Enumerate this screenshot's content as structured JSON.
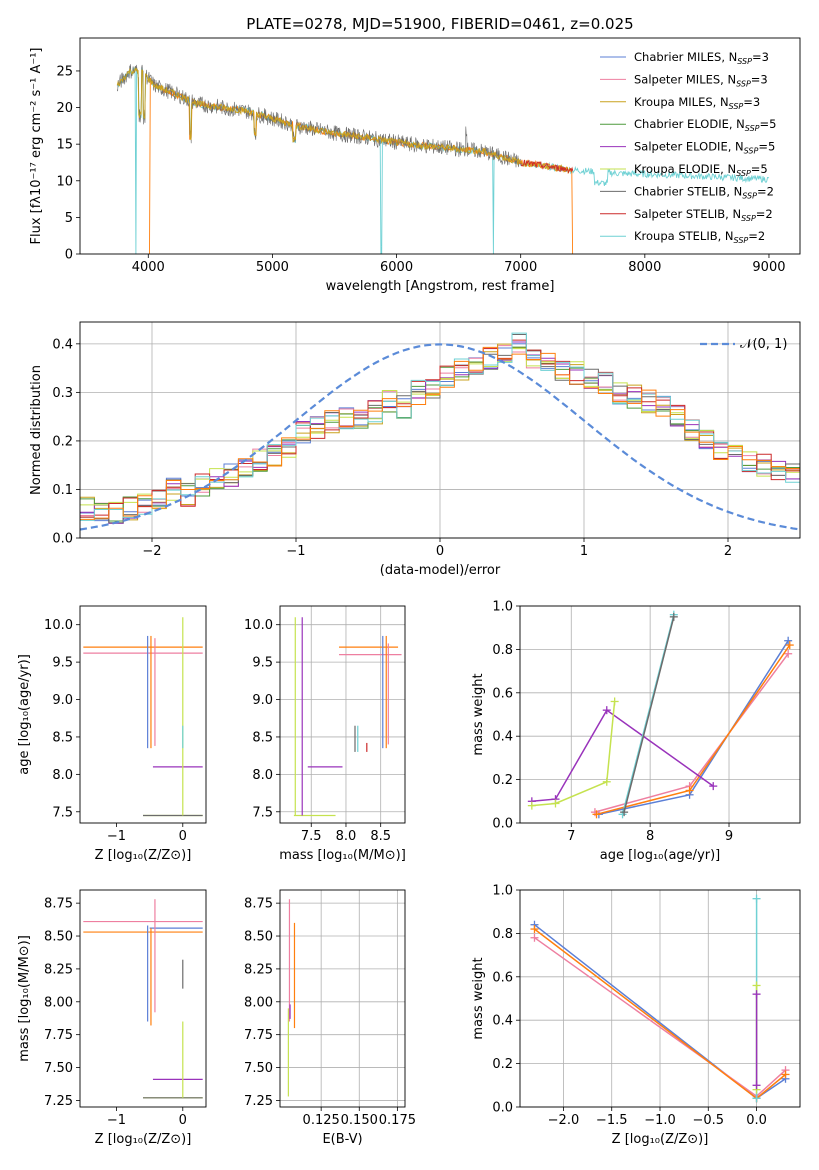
{
  "figure": {
    "title": "PLATE=0278, MJD=51900, FIBERID=0461, z=0.025"
  },
  "colors": {
    "chabrier_miles": "#5b7fd6",
    "salpeter_miles": "#ee7fa0",
    "kroupa_miles": "#c9a21f",
    "chabrier_elodie": "#4f9a3d",
    "salpeter_elodie": "#9933bb",
    "kroupa_elodie": "#c5e24f",
    "chabrier_stelib": "#6b6b6b",
    "salpeter_stelib": "#cc2a2a",
    "kroupa_stelib": "#6fd1d4",
    "orange": "#ff7f0e",
    "normal_curve": "#5b8bd8",
    "grid": "#b0b0b0"
  },
  "chart_data": [
    {
      "id": "spectrum",
      "type": "line",
      "xlabel": "wavelength [Angstrom, rest frame]",
      "ylabel": "Flux [f_λ10^-17 erg cm^-2 s^-1 A^-1]",
      "xlim": [
        3450,
        9250
      ],
      "ylim": [
        0,
        29.5
      ],
      "xticks": [
        4000,
        5000,
        6000,
        7000,
        8000,
        9000
      ],
      "yticks": [
        0,
        5,
        10,
        15,
        20,
        25
      ],
      "grid": false,
      "legend_position": "top-right",
      "legend": [
        {
          "label": "Chabrier MILES, N",
          "sub": "SSP",
          "tail": "=3",
          "color_key": "chabrier_miles"
        },
        {
          "label": "Salpeter MILES, N",
          "sub": "SSP",
          "tail": "=3",
          "color_key": "salpeter_miles"
        },
        {
          "label": "Kroupa MILES, N",
          "sub": "SSP",
          "tail": "=3",
          "color_key": "kroupa_miles"
        },
        {
          "label": "Chabrier ELODIE, N",
          "sub": "SSP",
          "tail": "=5",
          "color_key": "chabrier_elodie"
        },
        {
          "label": "Salpeter ELODIE, N",
          "sub": "SSP",
          "tail": "=5",
          "color_key": "salpeter_elodie"
        },
        {
          "label": "Kroupa ELODIE, N",
          "sub": "SSP",
          "tail": "=5",
          "color_key": "kroupa_elodie"
        },
        {
          "label": "Chabrier STELIB, N",
          "sub": "SSP",
          "tail": "=2",
          "color_key": "chabrier_stelib"
        },
        {
          "label": "Salpeter STELIB, N",
          "sub": "SSP",
          "tail": "=2",
          "color_key": "salpeter_stelib"
        },
        {
          "label": "Kroupa STELIB, N",
          "sub": "SSP",
          "tail": "=2",
          "color_key": "kroupa_stelib"
        }
      ],
      "continuum": {
        "x": [
          3750,
          3850,
          3950,
          4050,
          4200,
          4400,
          4600,
          4800,
          5000,
          5200,
          5500,
          5800,
          6100,
          6400,
          6700,
          7000,
          7400,
          7800,
          8200,
          8600,
          9000
        ],
        "y": [
          23,
          25,
          25,
          23,
          22,
          20.5,
          20,
          19.5,
          18.5,
          17.5,
          16.5,
          15.8,
          15,
          14.5,
          14,
          12.5,
          11.5,
          11,
          10.8,
          10.5,
          10.2
        ]
      },
      "spectra": [
        {
          "color_key": "kroupa_stelib",
          "x_range": [
            3750,
            9000
          ],
          "drops": [
            [
              3900,
              0
            ],
            [
              5875,
              0
            ],
            [
              6780,
              0
            ]
          ]
        },
        {
          "color_key": "orange",
          "x_range": [
            4010,
            7420
          ],
          "drops": [
            [
              4010,
              0
            ],
            [
              7420,
              0
            ]
          ]
        },
        {
          "color_key": "chabrier_stelib",
          "x_range": [
            3750,
            7000
          ],
          "drops": []
        },
        {
          "color_key": "kroupa_miles",
          "x_range": [
            3750,
            7400
          ],
          "drops": []
        },
        {
          "color_key": "salpeter_stelib",
          "x_range": [
            7000,
            7420
          ],
          "drops": []
        }
      ]
    },
    {
      "id": "residuals",
      "type": "histogram",
      "xlabel": "(data-model)/error",
      "ylabel": "Normed distribution",
      "xlim": [
        -2.5,
        2.5
      ],
      "ylim": [
        0,
        0.445
      ],
      "xticks": [
        -2,
        -1,
        0,
        1,
        2
      ],
      "yticks": [
        0.0,
        0.1,
        0.2,
        0.3,
        0.4
      ],
      "grid": true,
      "legend_position": "top-right",
      "legend": [
        {
          "label": "N(0,1)",
          "color_key": "normal_curve",
          "style": "dashed"
        }
      ],
      "bin_width": 0.1,
      "bin_start": -2.5,
      "base_density": [
        0.06,
        0.05,
        0.05,
        0.06,
        0.07,
        0.08,
        0.1,
        0.09,
        0.11,
        0.12,
        0.13,
        0.15,
        0.16,
        0.17,
        0.19,
        0.22,
        0.23,
        0.24,
        0.25,
        0.25,
        0.26,
        0.28,
        0.27,
        0.3,
        0.31,
        0.33,
        0.35,
        0.36,
        0.37,
        0.38,
        0.4,
        0.37,
        0.36,
        0.35,
        0.34,
        0.33,
        0.32,
        0.3,
        0.29,
        0.28,
        0.27,
        0.25,
        0.22,
        0.2,
        0.18,
        0.17,
        0.16,
        0.15,
        0.14,
        0.13,
        0.12,
        0.1,
        0.09,
        0.08,
        0.07,
        0.06,
        0.05,
        0.05,
        0.04,
        0.04
      ],
      "series_color_keys": [
        "chabrier_miles",
        "salpeter_miles",
        "kroupa_miles",
        "chabrier_elodie",
        "salpeter_elodie",
        "kroupa_elodie",
        "chabrier_stelib",
        "salpeter_stelib",
        "kroupa_stelib",
        "orange"
      ]
    },
    {
      "id": "age_vs_Z",
      "type": "errorbar",
      "xlabel": "Z [log10(Z/Z_sun)]",
      "ylabel": "age [log10(age/yr)]",
      "xlim": [
        -1.55,
        0.35
      ],
      "ylim": [
        7.35,
        10.25
      ],
      "xticks": [
        -1,
        0
      ],
      "yticks": [
        7.5,
        8.0,
        8.5,
        9.0,
        9.5,
        10.0
      ],
      "grid": false,
      "hbars": [
        {
          "y": 9.7,
          "x0": -1.5,
          "x1": 0.3,
          "color_key": "orange"
        },
        {
          "y": 9.62,
          "x0": -1.5,
          "x1": 0.3,
          "color_key": "salpeter_miles"
        },
        {
          "y": 8.1,
          "x0": -0.45,
          "x1": 0.3,
          "color_key": "salpeter_elodie"
        },
        {
          "y": 7.45,
          "x0": -0.6,
          "x1": 0.3,
          "color_key": "kroupa_elodie"
        },
        {
          "y": 7.45,
          "x0": -0.6,
          "x1": 0.3,
          "color_key": "chabrier_stelib"
        }
      ],
      "vbars": [
        {
          "x": -0.53,
          "y0": 8.35,
          "y1": 9.85,
          "color_key": "chabrier_miles"
        },
        {
          "x": -0.48,
          "y0": 8.35,
          "y1": 9.85,
          "color_key": "orange"
        },
        {
          "x": -0.42,
          "y0": 8.38,
          "y1": 9.82,
          "color_key": "salpeter_miles"
        },
        {
          "x": 0.0,
          "y0": 7.45,
          "y1": 10.1,
          "color_key": "kroupa_elodie"
        },
        {
          "x": 0.0,
          "y0": 8.35,
          "y1": 8.65,
          "color_key": "kroupa_stelib"
        }
      ]
    },
    {
      "id": "age_vs_mass",
      "type": "errorbar",
      "xlabel": "mass [log10(M/M_sun)]",
      "ylabel": "",
      "xlim": [
        7.05,
        8.85
      ],
      "ylim": [
        7.35,
        10.25
      ],
      "xticks": [
        7.5,
        8.0,
        8.5
      ],
      "xtick_labels": [
        "7.5",
        "8.0",
        "8.5"
      ],
      "yticks": [
        7.5,
        8.0,
        8.5,
        9.0,
        9.5,
        10.0
      ],
      "grid": true,
      "hbars": [
        {
          "y": 9.7,
          "x0": 7.9,
          "x1": 8.75,
          "color_key": "orange"
        },
        {
          "y": 9.6,
          "x0": 7.9,
          "x1": 8.8,
          "color_key": "salpeter_miles"
        },
        {
          "y": 8.1,
          "x0": 7.45,
          "x1": 7.95,
          "color_key": "salpeter_elodie"
        },
        {
          "y": 7.45,
          "x0": 7.25,
          "x1": 7.85,
          "color_key": "kroupa_elodie"
        }
      ],
      "vbars": [
        {
          "x": 7.27,
          "y0": 7.45,
          "y1": 10.1,
          "color_key": "kroupa_elodie"
        },
        {
          "x": 7.37,
          "y0": 7.45,
          "y1": 10.1,
          "color_key": "salpeter_elodie"
        },
        {
          "x": 8.53,
          "y0": 8.35,
          "y1": 9.85,
          "color_key": "chabrier_miles"
        },
        {
          "x": 8.58,
          "y0": 8.35,
          "y1": 9.85,
          "color_key": "orange"
        },
        {
          "x": 8.61,
          "y0": 8.4,
          "y1": 9.75,
          "color_key": "salpeter_miles"
        },
        {
          "x": 8.13,
          "y0": 8.3,
          "y1": 8.65,
          "color_key": "chabrier_stelib"
        },
        {
          "x": 8.17,
          "y0": 8.3,
          "y1": 8.65,
          "color_key": "kroupa_stelib"
        },
        {
          "x": 8.3,
          "y0": 8.3,
          "y1": 8.42,
          "color_key": "salpeter_stelib"
        }
      ]
    },
    {
      "id": "weight_vs_age",
      "type": "line",
      "xlabel": "age [log10(age/yr)]",
      "ylabel": "mass weight",
      "xlim": [
        6.35,
        9.9
      ],
      "ylim": [
        0,
        1.0
      ],
      "xticks": [
        7,
        8,
        9
      ],
      "yticks": [
        0.0,
        0.2,
        0.4,
        0.6,
        0.8,
        1.0
      ],
      "grid": true,
      "series": [
        {
          "color_key": "chabrier_miles",
          "x": [
            7.35,
            8.5,
            9.75
          ],
          "y": [
            0.04,
            0.13,
            0.84
          ]
        },
        {
          "color_key": "salpeter_miles",
          "x": [
            7.3,
            8.5,
            9.75
          ],
          "y": [
            0.05,
            0.17,
            0.78
          ]
        },
        {
          "color_key": "orange",
          "x": [
            7.32,
            8.5,
            9.77
          ],
          "y": [
            0.04,
            0.15,
            0.82
          ]
        },
        {
          "color_key": "salpeter_elodie",
          "x": [
            6.5,
            6.8,
            7.45,
            8.8
          ],
          "y": [
            0.1,
            0.11,
            0.52,
            0.17
          ]
        },
        {
          "color_key": "kroupa_elodie",
          "x": [
            6.5,
            6.8,
            7.45,
            7.55
          ],
          "y": [
            0.08,
            0.09,
            0.19,
            0.56
          ]
        },
        {
          "color_key": "kroupa_stelib",
          "x": [
            7.65,
            8.3
          ],
          "y": [
            0.04,
            0.96
          ]
        },
        {
          "color_key": "chabrier_stelib",
          "x": [
            7.67,
            8.3
          ],
          "y": [
            0.05,
            0.95
          ]
        }
      ]
    },
    {
      "id": "mass_vs_Z",
      "type": "errorbar",
      "xlabel": "Z [log10(Z/Z_sun)]",
      "ylabel": "mass [log10(M/M_sun)]",
      "xlim": [
        -1.55,
        0.35
      ],
      "ylim": [
        7.2,
        8.85
      ],
      "xticks": [
        -1,
        0
      ],
      "yticks": [
        7.25,
        7.5,
        7.75,
        8.0,
        8.25,
        8.5,
        8.75
      ],
      "grid": false,
      "hbars": [
        {
          "y": 8.61,
          "x0": -1.5,
          "x1": 0.3,
          "color_key": "salpeter_miles"
        },
        {
          "y": 8.56,
          "x0": -0.5,
          "x1": 0.3,
          "color_key": "chabrier_miles"
        },
        {
          "y": 8.53,
          "x0": -1.5,
          "x1": 0.3,
          "color_key": "orange"
        },
        {
          "y": 7.41,
          "x0": -0.45,
          "x1": 0.3,
          "color_key": "salpeter_elodie"
        },
        {
          "y": 7.27,
          "x0": -0.6,
          "x1": 0.3,
          "color_key": "kroupa_elodie"
        },
        {
          "y": 7.27,
          "x0": -0.6,
          "x1": 0.3,
          "color_key": "chabrier_stelib"
        }
      ],
      "vbars": [
        {
          "x": -0.53,
          "y0": 7.85,
          "y1": 8.58,
          "color_key": "chabrier_miles"
        },
        {
          "x": -0.48,
          "y0": 7.82,
          "y1": 8.56,
          "color_key": "orange"
        },
        {
          "x": -0.42,
          "y0": 7.92,
          "y1": 8.78,
          "color_key": "salpeter_miles"
        },
        {
          "x": 0.0,
          "y0": 7.27,
          "y1": 7.85,
          "color_key": "kroupa_elodie"
        },
        {
          "x": 0.0,
          "y0": 8.1,
          "y1": 8.32,
          "color_key": "chabrier_stelib"
        }
      ]
    },
    {
      "id": "mass_vs_ebv",
      "type": "errorbar",
      "xlabel": "E(B-V)",
      "ylabel": "",
      "xlim": [
        0.098,
        0.18
      ],
      "ylim": [
        7.2,
        8.85
      ],
      "xticks": [
        0.125,
        0.15,
        0.175
      ],
      "xtick_labels": [
        "0.125",
        "0.150",
        "0.175"
      ],
      "yticks": [
        7.25,
        7.5,
        7.75,
        8.0,
        8.25,
        8.5,
        8.75
      ],
      "grid": true,
      "hbars": [],
      "vbars": [
        {
          "x": 0.1035,
          "y0": 7.28,
          "y1": 7.95,
          "color_key": "kroupa_elodie"
        },
        {
          "x": 0.1042,
          "y0": 7.85,
          "y1": 8.78,
          "color_key": "salpeter_miles"
        },
        {
          "x": 0.1046,
          "y0": 7.87,
          "y1": 7.98,
          "color_key": "salpeter_elodie"
        },
        {
          "x": 0.1075,
          "y0": 7.8,
          "y1": 8.6,
          "color_key": "orange"
        }
      ]
    },
    {
      "id": "weight_vs_Z",
      "type": "line",
      "xlabel": "Z [log10(Z/Z_sun)]",
      "ylabel": "mass weight",
      "xlim": [
        -2.45,
        0.45
      ],
      "ylim": [
        0,
        1.0
      ],
      "xticks": [
        -2.0,
        -1.5,
        -1.0,
        -0.5,
        0.0
      ],
      "xtick_labels": [
        "−2.0",
        "−1.5",
        "−1.0",
        "−0.5",
        "0.0"
      ],
      "yticks": [
        0.0,
        0.2,
        0.4,
        0.6,
        0.8,
        1.0
      ],
      "grid": true,
      "series": [
        {
          "color_key": "chabrier_miles",
          "x": [
            -2.3,
            0.0,
            0.3
          ],
          "y": [
            0.84,
            0.04,
            0.13
          ]
        },
        {
          "color_key": "salpeter_miles",
          "x": [
            -2.3,
            0.0,
            0.3
          ],
          "y": [
            0.78,
            0.05,
            0.17
          ]
        },
        {
          "color_key": "orange",
          "x": [
            -2.3,
            0.0,
            0.3
          ],
          "y": [
            0.82,
            0.04,
            0.15
          ]
        },
        {
          "color_key": "kroupa_stelib",
          "x": [
            0.0,
            0.0
          ],
          "y": [
            0.04,
            0.96
          ]
        },
        {
          "color_key": "kroupa_elodie",
          "x": [
            0.0,
            0.0
          ],
          "y": [
            0.08,
            0.56
          ]
        },
        {
          "color_key": "salpeter_elodie",
          "x": [
            0.0,
            0.0
          ],
          "y": [
            0.1,
            0.52
          ]
        }
      ]
    }
  ]
}
